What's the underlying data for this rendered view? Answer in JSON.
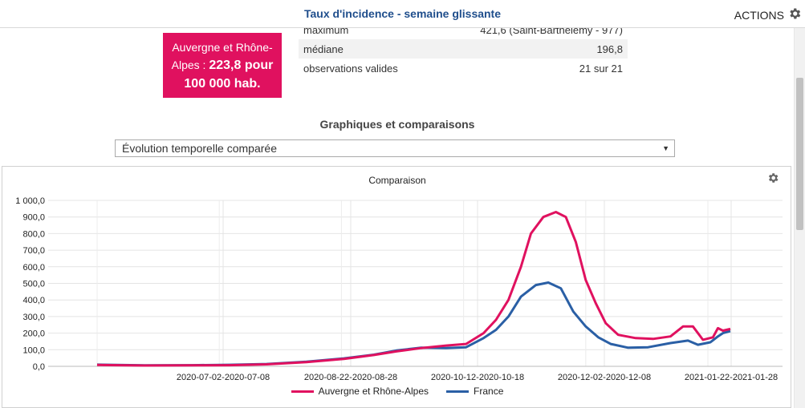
{
  "header": {
    "title": "Taux d'incidence - semaine glissante",
    "actions_label": "ACTIONS"
  },
  "badge": {
    "region": "Auvergne et Rhône-Alpes",
    "separator": " : ",
    "value": "223,8 pour 100 000 hab."
  },
  "stats": [
    {
      "label": "maximum",
      "value": "421,6 (Saint-Barthélemy - 977)"
    },
    {
      "label": "médiane",
      "value": "196,8"
    },
    {
      "label": "observations valides",
      "value": "21 sur 21"
    }
  ],
  "section": {
    "title": "Graphiques et comparaisons"
  },
  "select": {
    "value": "Évolution temporelle comparée"
  },
  "colors": {
    "accent_pink": "#e0115f",
    "accent_blue": "#2a5fa5"
  },
  "chart_data": {
    "type": "line",
    "title": "Comparaison",
    "ylim": [
      0,
      1000
    ],
    "y_ticks": [
      "0,0",
      "100,0",
      "200,0",
      "300,0",
      "400,0",
      "500,0",
      "600,0",
      "700,0",
      "800,0",
      "900,0",
      "1 000,0"
    ],
    "x_ticks": [
      "2020-07-02-2020-07-08",
      "2020-08-22-2020-08-28",
      "2020-10-12-2020-10-18",
      "2020-12-02-2020-12-08",
      "2021-01-22-2021-01-28"
    ],
    "x_range": [
      "2020-05-13",
      "2021-01-22"
    ],
    "grid": true,
    "legend_position": "bottom",
    "series": [
      {
        "name": "Auvergne et Rhône-Alpes",
        "color": "#e0115f",
        "points": [
          [
            "2020-05-13",
            8
          ],
          [
            "2020-06-01",
            5
          ],
          [
            "2020-06-20",
            6
          ],
          [
            "2020-07-05",
            7
          ],
          [
            "2020-07-20",
            12
          ],
          [
            "2020-08-05",
            25
          ],
          [
            "2020-08-20",
            45
          ],
          [
            "2020-09-01",
            68
          ],
          [
            "2020-09-10",
            90
          ],
          [
            "2020-09-20",
            110
          ],
          [
            "2020-09-30",
            125
          ],
          [
            "2020-10-08",
            135
          ],
          [
            "2020-10-15",
            200
          ],
          [
            "2020-10-20",
            280
          ],
          [
            "2020-10-25",
            400
          ],
          [
            "2020-10-30",
            600
          ],
          [
            "2020-11-03",
            800
          ],
          [
            "2020-11-08",
            900
          ],
          [
            "2020-11-13",
            930
          ],
          [
            "2020-11-17",
            900
          ],
          [
            "2020-11-21",
            750
          ],
          [
            "2020-11-25",
            520
          ],
          [
            "2020-11-29",
            380
          ],
          [
            "2020-12-03",
            260
          ],
          [
            "2020-12-08",
            190
          ],
          [
            "2020-12-15",
            170
          ],
          [
            "2020-12-22",
            165
          ],
          [
            "2020-12-29",
            180
          ],
          [
            "2021-01-03",
            240
          ],
          [
            "2021-01-07",
            240
          ],
          [
            "2021-01-11",
            160
          ],
          [
            "2021-01-15",
            175
          ],
          [
            "2021-01-17",
            230
          ],
          [
            "2021-01-19",
            215
          ],
          [
            "2021-01-22",
            225
          ]
        ]
      },
      {
        "name": "France",
        "color": "#2a5fa5",
        "points": [
          [
            "2020-05-13",
            10
          ],
          [
            "2020-06-01",
            6
          ],
          [
            "2020-06-20",
            7
          ],
          [
            "2020-07-05",
            9
          ],
          [
            "2020-07-20",
            14
          ],
          [
            "2020-08-05",
            28
          ],
          [
            "2020-08-20",
            48
          ],
          [
            "2020-09-01",
            70
          ],
          [
            "2020-09-10",
            95
          ],
          [
            "2020-09-20",
            112
          ],
          [
            "2020-09-30",
            110
          ],
          [
            "2020-10-08",
            115
          ],
          [
            "2020-10-15",
            170
          ],
          [
            "2020-10-20",
            220
          ],
          [
            "2020-10-25",
            300
          ],
          [
            "2020-10-30",
            420
          ],
          [
            "2020-11-05",
            490
          ],
          [
            "2020-11-10",
            505
          ],
          [
            "2020-11-15",
            470
          ],
          [
            "2020-11-20",
            330
          ],
          [
            "2020-11-25",
            240
          ],
          [
            "2020-11-30",
            175
          ],
          [
            "2020-12-05",
            135
          ],
          [
            "2020-12-12",
            112
          ],
          [
            "2020-12-20",
            115
          ],
          [
            "2020-12-29",
            140
          ],
          [
            "2021-01-05",
            155
          ],
          [
            "2021-01-09",
            130
          ],
          [
            "2021-01-14",
            145
          ],
          [
            "2021-01-17",
            180
          ],
          [
            "2021-01-19",
            200
          ],
          [
            "2021-01-22",
            212
          ]
        ]
      }
    ]
  }
}
